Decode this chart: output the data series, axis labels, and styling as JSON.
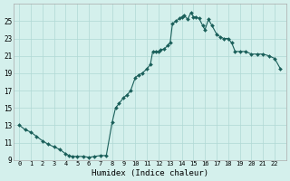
{
  "xlabel": "Humidex (Indice chaleur)",
  "background_color": "#d4f0ec",
  "line_color": "#1a5f5a",
  "marker_color": "#1a5f5a",
  "grid_color": "#b0d8d4",
  "xlim": [
    -0.5,
    23
  ],
  "ylim": [
    9,
    27
  ],
  "xticks": [
    0,
    1,
    2,
    3,
    4,
    5,
    6,
    7,
    8,
    9,
    10,
    11,
    12,
    13,
    14,
    15,
    16,
    17,
    18,
    19,
    20,
    21,
    22
  ],
  "yticks": [
    9,
    11,
    13,
    15,
    17,
    19,
    21,
    23,
    25
  ],
  "x": [
    0.0,
    0.5,
    1.0,
    1.5,
    2.0,
    2.5,
    3.0,
    3.5,
    4.0,
    4.3,
    4.6,
    5.0,
    5.5,
    6.0,
    6.5,
    7.0,
    7.5,
    8.0,
    8.3,
    8.6,
    9.0,
    9.3,
    9.6,
    10.0,
    10.3,
    10.6,
    11.0,
    11.3,
    11.5,
    11.8,
    12.0,
    12.2,
    12.5,
    12.8,
    13.0,
    13.2,
    13.5,
    13.8,
    14.0,
    14.2,
    14.5,
    14.8,
    15.0,
    15.2,
    15.5,
    15.8,
    16.0,
    16.3,
    16.6,
    17.0,
    17.3,
    17.6,
    18.0,
    18.3,
    18.6,
    19.0,
    19.5,
    20.0,
    20.5,
    21.0,
    21.5,
    22.0,
    22.5
  ],
  "y": [
    13.0,
    12.5,
    12.2,
    11.7,
    11.2,
    10.8,
    10.5,
    10.2,
    9.7,
    9.5,
    9.4,
    9.4,
    9.4,
    9.3,
    9.4,
    9.5,
    9.5,
    13.3,
    15.0,
    15.5,
    16.2,
    16.5,
    17.0,
    18.5,
    18.8,
    19.0,
    19.5,
    20.0,
    21.5,
    21.5,
    21.5,
    21.7,
    21.8,
    22.2,
    22.5,
    24.7,
    25.0,
    25.3,
    25.5,
    25.7,
    25.2,
    26.0,
    25.5,
    25.5,
    25.3,
    24.5,
    24.0,
    25.2,
    24.5,
    23.5,
    23.2,
    23.0,
    23.0,
    22.5,
    21.5,
    21.5,
    21.5,
    21.2,
    21.2,
    21.2,
    21.0,
    20.7,
    19.5
  ]
}
